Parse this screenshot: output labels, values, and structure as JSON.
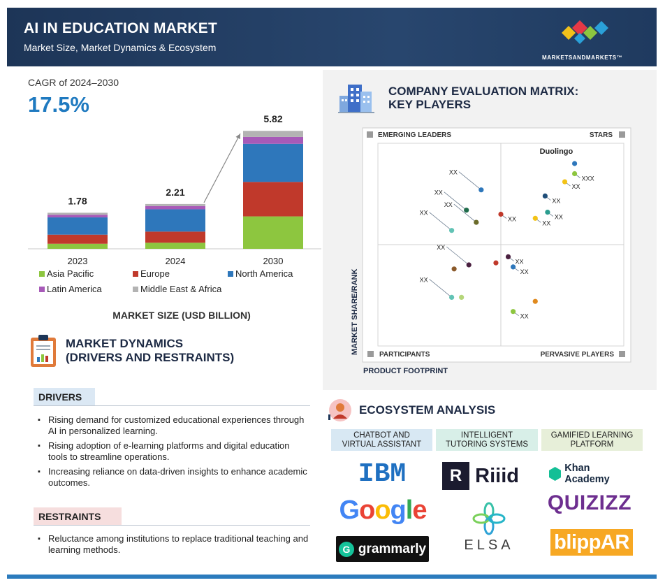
{
  "header": {
    "title": "AI IN EDUCATION MARKET",
    "subtitle": "Market Size, Market Dynamics & Ecosystem",
    "brand": "MARKETSANDMARKETS™"
  },
  "cagr": {
    "label": "CAGR of 2024–2030",
    "value": "17.5%"
  },
  "chart_data": {
    "type": "bar",
    "stacked": true,
    "categories": [
      "2023",
      "2024",
      "2030"
    ],
    "totals": [
      "1.78",
      "2.21",
      "5.82"
    ],
    "series": [
      {
        "name": "Asia Pacific",
        "color": "#8dc63f",
        "values": [
          0.25,
          0.3,
          1.6
        ]
      },
      {
        "name": "Europe",
        "color": "#c0392b",
        "values": [
          0.45,
          0.55,
          1.7
        ]
      },
      {
        "name": "North America",
        "color": "#2e77bb",
        "values": [
          0.85,
          1.1,
          1.88
        ]
      },
      {
        "name": "Latin America",
        "color": "#a75ab8",
        "values": [
          0.13,
          0.16,
          0.34
        ]
      },
      {
        "name": "Middle East & Africa",
        "color": "#b3b3b3",
        "values": [
          0.1,
          0.1,
          0.3
        ]
      }
    ],
    "caption": "MARKET SIZE (USD BILLION)"
  },
  "market_dynamics": {
    "title_line1": "MARKET DYNAMICS",
    "title_line2": "(DRIVERS AND RESTRAINTS)",
    "drivers_label": "DRIVERS",
    "drivers": [
      "Rising demand for customized educational experiences through AI in personalized learning.",
      "Rising adoption of e-learning platforms and digital education tools to streamline operations.",
      "Increasing reliance on data-driven insights to enhance academic outcomes."
    ],
    "restraints_label": "RESTRAINTS",
    "restraints": [
      "Reluctance among institutions to replace traditional teaching and learning methods."
    ]
  },
  "matrix": {
    "title_line1": "COMPANY EVALUATION MATRIX:",
    "title_line2": "KEY PLAYERS",
    "quadrants": {
      "top_left": "EMERGING LEADERS",
      "top_right": "STARS",
      "bottom_left": "PARTICIPANTS",
      "bottom_right": "PERVASIVE PLAYERS"
    },
    "x_label": "PRODUCT FOOTPRINT",
    "y_label": "MARKET SHARE/RANK",
    "points": [
      {
        "x": 0.8,
        "y": 0.9,
        "color": "#2e77bb",
        "label": "Duolingo"
      },
      {
        "x": 0.8,
        "y": 0.85,
        "color": "#8dc63f",
        "label": "XXX"
      },
      {
        "x": 0.76,
        "y": 0.81,
        "color": "#f3c316",
        "label": "XX"
      },
      {
        "x": 0.68,
        "y": 0.74,
        "color": "#1f4e79",
        "label": "XX"
      },
      {
        "x": 0.69,
        "y": 0.66,
        "color": "#2a9d8f",
        "label": "XX"
      },
      {
        "x": 0.64,
        "y": 0.63,
        "color": "#f3c316",
        "label": "XX"
      },
      {
        "x": 0.5,
        "y": 0.65,
        "color": "#c0392b",
        "label": "XX"
      },
      {
        "x": 0.42,
        "y": 0.77,
        "color": "#2e77bb",
        "label": "XX"
      },
      {
        "x": 0.36,
        "y": 0.67,
        "color": "#1e6b4a",
        "label": "XX"
      },
      {
        "x": 0.4,
        "y": 0.61,
        "color": "#6b6b2a",
        "label": "XX"
      },
      {
        "x": 0.3,
        "y": 0.57,
        "color": "#62c3b5",
        "label": "XX"
      },
      {
        "x": 0.37,
        "y": 0.4,
        "color": "#4a2040",
        "label": "XX"
      },
      {
        "x": 0.48,
        "y": 0.41,
        "color": "#c0392b",
        "label": ""
      },
      {
        "x": 0.53,
        "y": 0.44,
        "color": "#4a2040",
        "label": "XX"
      },
      {
        "x": 0.55,
        "y": 0.39,
        "color": "#2e77bb",
        "label": "XX"
      },
      {
        "x": 0.31,
        "y": 0.38,
        "color": "#8b5a2b",
        "label": ""
      },
      {
        "x": 0.3,
        "y": 0.24,
        "color": "#62c3b5",
        "label": "XX"
      },
      {
        "x": 0.34,
        "y": 0.24,
        "color": "#b5d67a",
        "label": ""
      },
      {
        "x": 0.64,
        "y": 0.22,
        "color": "#e08a1e",
        "label": ""
      },
      {
        "x": 0.55,
        "y": 0.17,
        "color": "#8dc63f",
        "label": "XX"
      }
    ]
  },
  "ecosystem": {
    "title": "ECOSYSTEM ANALYSIS",
    "columns": [
      {
        "line1": "CHATBOT AND",
        "line2": "VIRTUAL ASSISTANT"
      },
      {
        "line1": "INTELLIGENT",
        "line2": "TUTORING SYSTEMS"
      },
      {
        "line1": "GAMIFIED LEARNING",
        "line2": "PLATFORM"
      }
    ],
    "logos": {
      "ibm": "IBM",
      "google": [
        "G",
        "o",
        "o",
        "g",
        "l",
        "e"
      ],
      "grammarly": "grammarly",
      "riiid": "Riiid",
      "elsa": "ELSA",
      "khan": "Khan Academy",
      "quizizz": "QUIZIZZ",
      "blippar": "blippAR"
    }
  }
}
